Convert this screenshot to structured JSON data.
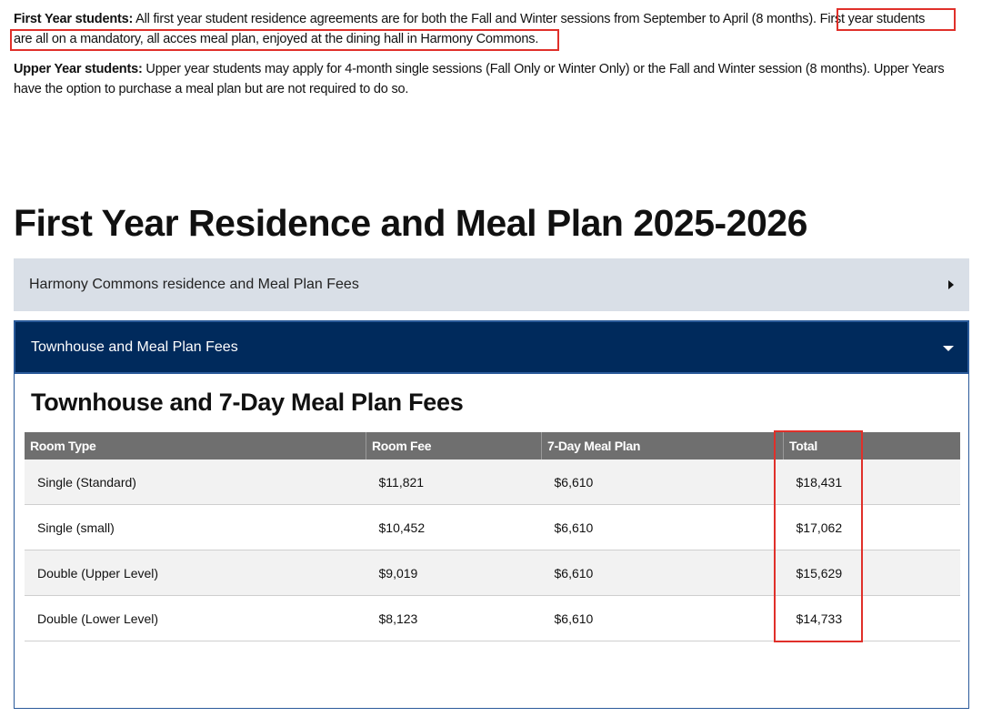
{
  "intro": {
    "first_year": {
      "label": "First Year students:",
      "text_before": " All first year student residence agreements are for both the Fall and Winter sessions from September to April (8 months). ",
      "highlighted_line1": "First year students",
      "highlighted_line2": "are all on a mandatory, all acces meal plan, enjoyed at the dining hall in Harmony Commons."
    },
    "upper_year": {
      "label": "Upper Year students:",
      "text": " Upper year students may apply for 4-month single sessions (Fall Only or Winter Only) or the Fall and Winter session (8 months). Upper Years have the option to purchase a meal plan but are not required to do so."
    }
  },
  "page_title": "First Year Residence and Meal Plan 2025-2026",
  "accordions": [
    {
      "label": "Harmony Commons residence and Meal Plan Fees",
      "state": "collapsed",
      "icon": "caret-right-icon"
    },
    {
      "label": "Townhouse and Meal Plan Fees",
      "state": "expanded",
      "icon": "caret-down-icon"
    }
  ],
  "panel": {
    "heading": "Townhouse and 7-Day Meal Plan Fees",
    "table": {
      "headers": [
        "Room Type",
        "Room Fee",
        "7-Day Meal Plan",
        "Total"
      ],
      "rows": [
        [
          "Single (Standard)",
          "$11,821",
          "$6,610",
          "$18,431"
        ],
        [
          "Single (small)",
          "$10,452",
          "$6,610",
          "$17,062"
        ],
        [
          "Double (Upper Level)",
          "$9,019",
          "$6,610",
          "$15,629"
        ],
        [
          "Double (Lower Level)",
          "$8,123",
          "$6,610",
          "$14,733"
        ]
      ]
    }
  },
  "colors": {
    "highlight": "#e0302a",
    "accordion_closed_bg": "#d9dfe7",
    "accordion_open_bg": "#002a5c",
    "table_header_bg": "#6f6f6f"
  }
}
